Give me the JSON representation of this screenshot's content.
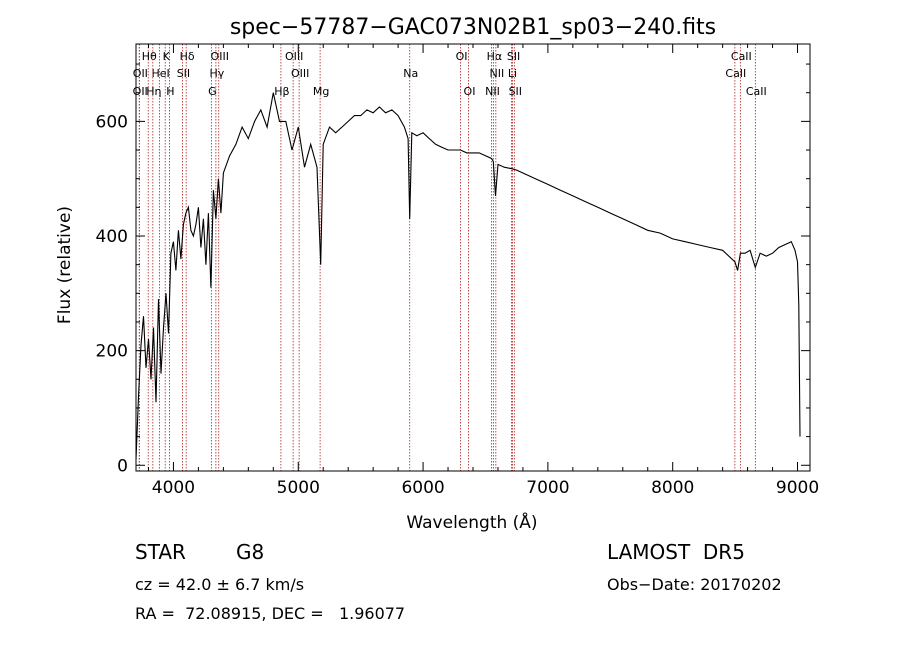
{
  "chart_data": {
    "type": "line",
    "title": "spec−57787−GAC073N02B1_sp03−240.fits",
    "xlabel": "Wavelength (Å)",
    "ylabel": "Flux (relative)",
    "xlim": [
      3700,
      9100
    ],
    "ylim": [
      -10,
      735
    ],
    "x_ticks": [
      4000,
      5000,
      6000,
      7000,
      8000,
      9000
    ],
    "y_ticks": [
      0,
      200,
      400,
      600
    ],
    "grid": false,
    "series": [
      {
        "color": "#000000",
        "x": [
          3700,
          3720,
          3740,
          3760,
          3780,
          3800,
          3820,
          3840,
          3860,
          3880,
          3900,
          3920,
          3940,
          3960,
          3980,
          4000,
          4020,
          4040,
          4060,
          4080,
          4100,
          4120,
          4140,
          4160,
          4180,
          4200,
          4220,
          4240,
          4260,
          4280,
          4300,
          4320,
          4340,
          4360,
          4380,
          4400,
          4450,
          4500,
          4550,
          4600,
          4650,
          4700,
          4750,
          4800,
          4850,
          4900,
          4950,
          5000,
          5050,
          5100,
          5150,
          5180,
          5200,
          5250,
          5300,
          5350,
          5400,
          5450,
          5500,
          5550,
          5600,
          5650,
          5700,
          5750,
          5800,
          5850,
          5880,
          5893,
          5910,
          5950,
          6000,
          6050,
          6100,
          6150,
          6200,
          6250,
          6300,
          6350,
          6400,
          6450,
          6500,
          6550,
          6563,
          6580,
          6600,
          6650,
          6700,
          6750,
          6800,
          6900,
          7000,
          7100,
          7200,
          7300,
          7400,
          7500,
          7600,
          7700,
          7800,
          7900,
          8000,
          8100,
          8200,
          8300,
          8400,
          8498,
          8520,
          8542,
          8580,
          8620,
          8662,
          8700,
          8750,
          8800,
          8850,
          8900,
          8950,
          8980,
          9000,
          9010,
          9020
        ],
        "y": [
          10,
          120,
          210,
          260,
          170,
          220,
          150,
          240,
          110,
          290,
          160,
          240,
          300,
          230,
          370,
          390,
          340,
          410,
          360,
          420,
          440,
          450,
          410,
          400,
          420,
          450,
          380,
          430,
          350,
          440,
          310,
          480,
          430,
          500,
          440,
          510,
          540,
          560,
          590,
          570,
          600,
          620,
          590,
          650,
          600,
          600,
          550,
          590,
          520,
          560,
          520,
          350,
          560,
          590,
          580,
          590,
          600,
          610,
          610,
          620,
          615,
          625,
          615,
          620,
          610,
          590,
          570,
          430,
          580,
          575,
          580,
          570,
          560,
          555,
          550,
          550,
          550,
          545,
          545,
          545,
          540,
          535,
          530,
          470,
          525,
          520,
          518,
          515,
          510,
          500,
          490,
          480,
          470,
          460,
          450,
          440,
          430,
          420,
          410,
          405,
          395,
          390,
          385,
          380,
          375,
          355,
          340,
          370,
          370,
          375,
          345,
          370,
          365,
          370,
          380,
          385,
          390,
          375,
          355,
          280,
          50
        ],
        "values_note_excluded": true
      }
    ],
    "lines": [
      {
        "name": "Hθ",
        "wave": 3798,
        "row": 0
      },
      {
        "name": "K",
        "wave": 3934,
        "row": 0
      },
      {
        "name": "Hδ",
        "wave": 4102,
        "row": 0
      },
      {
        "name": "OIII",
        "wave": 4363,
        "row": 0
      },
      {
        "name": "OIII",
        "wave": 4959,
        "row": 0
      },
      {
        "name": "OI",
        "wave": 6300,
        "row": 0
      },
      {
        "name": "Hα",
        "wave": 6563,
        "row": 0
      },
      {
        "name": "SII",
        "wave": 6717,
        "row": 0
      },
      {
        "name": "CaII",
        "wave": 8542,
        "row": 0
      },
      {
        "name": "OII",
        "wave": 3727,
        "row": 1
      },
      {
        "name": "HeI",
        "wave": 3889,
        "row": 1
      },
      {
        "name": "SII",
        "wave": 4072,
        "row": 1
      },
      {
        "name": "Hγ",
        "wave": 4340,
        "row": 1
      },
      {
        "name": "OIII",
        "wave": 5007,
        "row": 1
      },
      {
        "name": "Na",
        "wave": 5893,
        "row": 1
      },
      {
        "name": "NII",
        "wave": 6583,
        "row": 1
      },
      {
        "name": "Li",
        "wave": 6708,
        "row": 1
      },
      {
        "name": "CaII",
        "wave": 8498,
        "row": 1
      },
      {
        "name": "OII",
        "wave": 3726,
        "row": 2
      },
      {
        "name": "Hη",
        "wave": 3835,
        "row": 2
      },
      {
        "name": "H",
        "wave": 3968,
        "row": 2
      },
      {
        "name": "G",
        "wave": 4304,
        "row": 2
      },
      {
        "name": "Hβ",
        "wave": 4861,
        "row": 2
      },
      {
        "name": "Mg",
        "wave": 5175,
        "row": 2
      },
      {
        "name": "OI",
        "wave": 6364,
        "row": 2
      },
      {
        "name": "NII",
        "wave": 6548,
        "row": 2
      },
      {
        "name": "SII",
        "wave": 6731,
        "row": 2
      },
      {
        "name": "CaII",
        "wave": 8662,
        "row": 2
      }
    ]
  },
  "info": {
    "class": "STAR",
    "subclass": "G8",
    "survey": "LAMOST  DR5",
    "cz": "cz = 42.0 ± 6.7 km/s",
    "obs_date": "Obs−Date: 20170202",
    "radec": "RA =  72.08915, DEC =   1.96077"
  }
}
